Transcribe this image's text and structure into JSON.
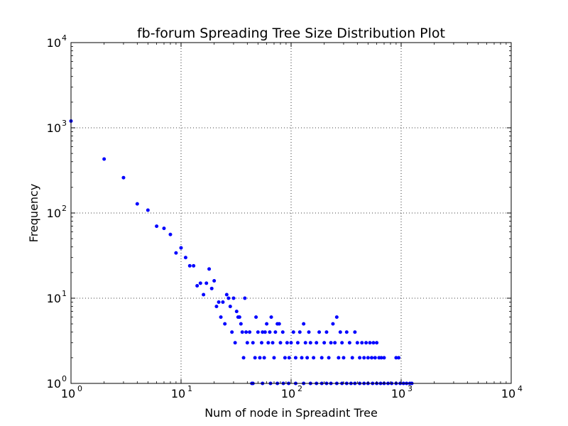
{
  "chart_data": {
    "type": "scatter",
    "title": "fb-forum Spreading Tree Size Distribution Plot",
    "xlabel": "Num of node in Spreadint Tree",
    "ylabel": "Frequency",
    "xscale": "log",
    "yscale": "log",
    "xlim": [
      1,
      10000
    ],
    "ylim": [
      1,
      10000
    ],
    "grid": true,
    "marker_color": "#0000ff",
    "x_ticks": [
      {
        "base": "10",
        "exp": "0",
        "value": 1
      },
      {
        "base": "10",
        "exp": "1",
        "value": 10
      },
      {
        "base": "10",
        "exp": "2",
        "value": 100
      },
      {
        "base": "10",
        "exp": "3",
        "value": 1000
      },
      {
        "base": "10",
        "exp": "4",
        "value": 10000
      }
    ],
    "y_ticks": [
      {
        "base": "10",
        "exp": "0",
        "value": 1
      },
      {
        "base": "10",
        "exp": "1",
        "value": 10
      },
      {
        "base": "10",
        "exp": "2",
        "value": 100
      },
      {
        "base": "10",
        "exp": "3",
        "value": 1000
      },
      {
        "base": "10",
        "exp": "4",
        "value": 10000
      }
    ],
    "points": [
      [
        1,
        1200
      ],
      [
        2,
        430
      ],
      [
        3,
        260
      ],
      [
        4,
        128
      ],
      [
        5,
        108
      ],
      [
        6,
        70
      ],
      [
        7,
        66
      ],
      [
        8,
        56
      ],
      [
        9,
        34
      ],
      [
        10,
        39
      ],
      [
        11,
        30
      ],
      [
        12,
        24
      ],
      [
        13,
        24
      ],
      [
        14,
        14
      ],
      [
        15,
        15
      ],
      [
        16,
        11
      ],
      [
        17,
        15
      ],
      [
        18,
        22
      ],
      [
        19,
        13
      ],
      [
        20,
        16
      ],
      [
        21,
        8
      ],
      [
        22,
        9
      ],
      [
        23,
        6
      ],
      [
        24,
        9
      ],
      [
        25,
        5
      ],
      [
        26,
        11
      ],
      [
        27,
        10
      ],
      [
        28,
        8
      ],
      [
        29,
        4
      ],
      [
        30,
        10
      ],
      [
        31,
        3
      ],
      [
        32,
        7
      ],
      [
        33,
        6
      ],
      [
        34,
        6
      ],
      [
        35,
        5
      ],
      [
        36,
        4
      ],
      [
        37,
        2
      ],
      [
        38,
        10
      ],
      [
        39,
        4
      ],
      [
        40,
        3
      ],
      [
        42,
        4
      ],
      [
        44,
        1
      ],
      [
        45,
        3
      ],
      [
        47,
        2
      ],
      [
        48,
        6
      ],
      [
        50,
        4
      ],
      [
        52,
        2
      ],
      [
        54,
        3
      ],
      [
        55,
        4
      ],
      [
        57,
        2
      ],
      [
        58,
        4
      ],
      [
        60,
        5
      ],
      [
        62,
        3
      ],
      [
        64,
        4
      ],
      [
        66,
        6
      ],
      [
        68,
        3
      ],
      [
        70,
        2
      ],
      [
        72,
        4
      ],
      [
        75,
        5
      ],
      [
        78,
        5
      ],
      [
        80,
        3
      ],
      [
        84,
        4
      ],
      [
        88,
        2
      ],
      [
        92,
        3
      ],
      [
        96,
        2
      ],
      [
        100,
        3
      ],
      [
        105,
        4
      ],
      [
        110,
        2
      ],
      [
        115,
        3
      ],
      [
        120,
        4
      ],
      [
        125,
        2
      ],
      [
        130,
        5
      ],
      [
        135,
        3
      ],
      [
        140,
        2
      ],
      [
        145,
        4
      ],
      [
        150,
        3
      ],
      [
        160,
        2
      ],
      [
        170,
        3
      ],
      [
        180,
        4
      ],
      [
        190,
        2
      ],
      [
        200,
        3
      ],
      [
        210,
        4
      ],
      [
        220,
        2
      ],
      [
        230,
        3
      ],
      [
        240,
        5
      ],
      [
        250,
        3
      ],
      [
        260,
        6
      ],
      [
        270,
        2
      ],
      [
        280,
        4
      ],
      [
        290,
        3
      ],
      [
        300,
        2
      ],
      [
        320,
        4
      ],
      [
        340,
        3
      ],
      [
        360,
        2
      ],
      [
        380,
        4
      ],
      [
        400,
        3
      ],
      [
        420,
        2
      ],
      [
        440,
        3
      ],
      [
        460,
        2
      ],
      [
        480,
        3
      ],
      [
        500,
        2
      ],
      [
        520,
        3
      ],
      [
        540,
        2
      ],
      [
        560,
        3
      ],
      [
        580,
        2
      ],
      [
        600,
        3
      ],
      [
        630,
        2
      ],
      [
        660,
        2
      ],
      [
        700,
        2
      ],
      [
        900,
        2
      ],
      [
        950,
        2
      ],
      [
        45,
        1
      ],
      [
        55,
        1
      ],
      [
        65,
        1
      ],
      [
        75,
        1
      ],
      [
        85,
        1
      ],
      [
        95,
        1
      ],
      [
        110,
        1
      ],
      [
        130,
        1
      ],
      [
        150,
        1
      ],
      [
        170,
        1
      ],
      [
        190,
        1
      ],
      [
        210,
        1
      ],
      [
        230,
        1
      ],
      [
        260,
        1
      ],
      [
        290,
        1
      ],
      [
        320,
        1
      ],
      [
        350,
        1
      ],
      [
        380,
        1
      ],
      [
        420,
        1
      ],
      [
        460,
        1
      ],
      [
        500,
        1
      ],
      [
        550,
        1
      ],
      [
        600,
        1
      ],
      [
        650,
        1
      ],
      [
        700,
        1
      ],
      [
        760,
        1
      ],
      [
        820,
        1
      ],
      [
        900,
        1
      ],
      [
        980,
        1
      ],
      [
        1050,
        1
      ],
      [
        1120,
        1
      ],
      [
        1200,
        1
      ],
      [
        1250,
        1
      ]
    ]
  }
}
